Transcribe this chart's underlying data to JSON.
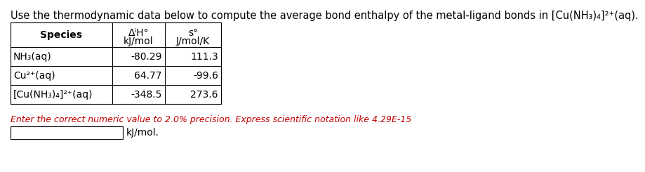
{
  "title": "Use the thermodynamic data below to compute the average bond enthalpy of the metal-ligand bonds in [Cu(NH₃)₄]²⁺(aq).",
  "col_header_dH": "ΔⁱH°",
  "col_header_s": "s°",
  "col_header_dH_unit": "kJ/mol",
  "col_header_s_unit": "J/mol/K",
  "col_label": "Species",
  "rows": [
    [
      "NH₃(aq)",
      "-80.29",
      "111.3"
    ],
    [
      "Cu²⁺(aq)",
      "64.77",
      "-99.6"
    ],
    [
      "[Cu(NH₃)₄]²⁺(aq)",
      "-348.5",
      "273.6"
    ]
  ],
  "footer_red": "Enter the correct numeric value to 2.0% precision. Express scientific notation like 4.29E-15",
  "footer_unit": "kJ/mol.",
  "bg_color": "#ffffff",
  "table_text_color": "#000000",
  "footer_red_color": "#c00000",
  "title_fontsize": 10.5,
  "table_fontsize": 10,
  "footer_fontsize": 9
}
